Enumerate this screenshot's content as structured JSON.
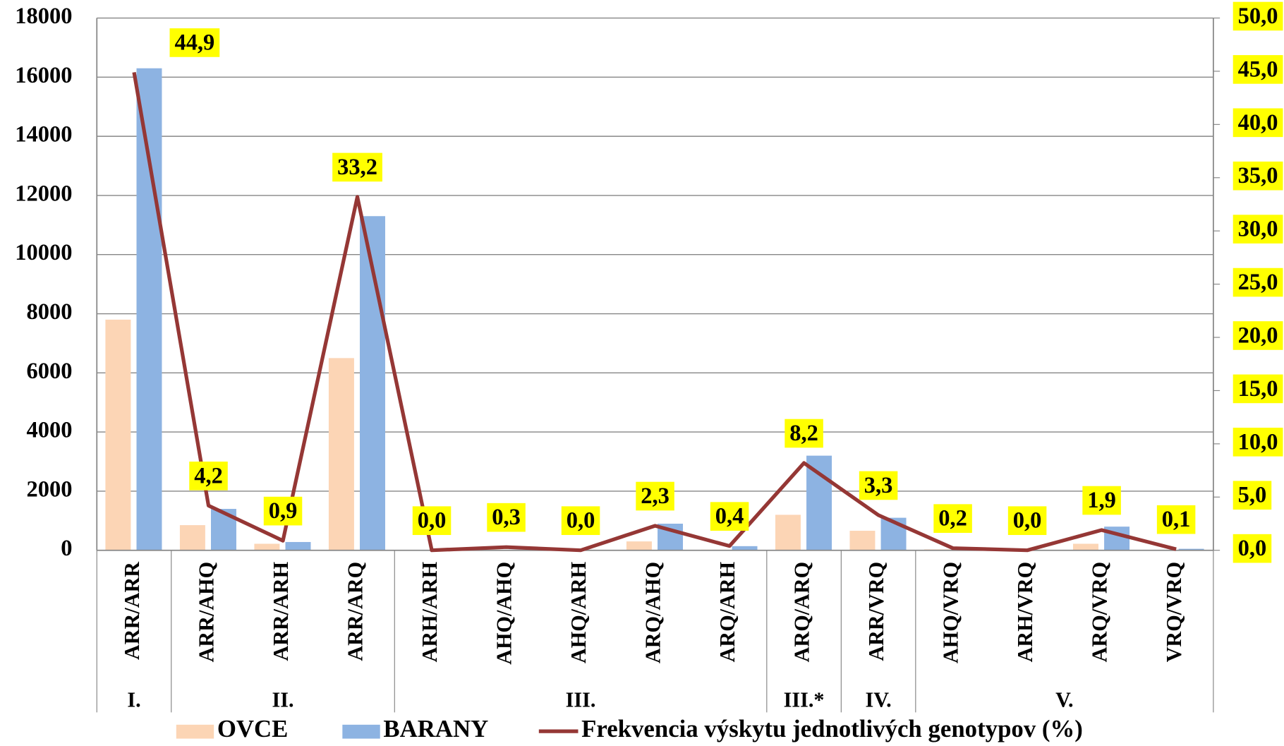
{
  "chart_data": {
    "type": "bar",
    "categories": [
      "ARR/ARR",
      "ARR/AHQ",
      "ARR/ARH",
      "ARR/ARQ",
      "ARH/ARH",
      "AHQ/AHQ",
      "AHQ/ARH",
      "ARQ/AHQ",
      "ARQ/ARH",
      "ARQ/ARQ",
      "ARR/VRQ",
      "AHQ/VRQ",
      "ARH/VRQ",
      "ARQ/VRQ",
      "VRQ/VRQ"
    ],
    "groups": [
      "I.",
      "II.",
      "III.",
      "III.*",
      "IV.",
      "V."
    ],
    "group_sizes": [
      1,
      3,
      5,
      1,
      1,
      4
    ],
    "series": [
      {
        "name": "OVCE",
        "color": "#fcd5b5",
        "values": [
          7800,
          850,
          220,
          6500,
          0,
          20,
          0,
          300,
          20,
          1200,
          660,
          30,
          0,
          220,
          0
        ]
      },
      {
        "name": "BARANY",
        "color": "#8db3e2",
        "values": [
          16300,
          1400,
          280,
          11300,
          0,
          20,
          0,
          900,
          140,
          3200,
          1100,
          0,
          0,
          800,
          50
        ]
      },
      {
        "name": "Frekvencia výskytu jednotlivých genotypov (%)",
        "color": "#953735",
        "type": "line",
        "axis": "y2",
        "values": [
          44.9,
          4.2,
          0.9,
          33.2,
          0.0,
          0.3,
          0.0,
          2.3,
          0.4,
          8.2,
          3.3,
          0.2,
          0.0,
          1.9,
          0.1
        ],
        "value_labels": [
          "44,9",
          "4,2",
          "0,9",
          "33,2",
          "0,0",
          "0,3",
          "0,0",
          "2,3",
          "0,4",
          "8,2",
          "3,3",
          "0,2",
          "0,0",
          "1,9",
          "0,1"
        ]
      }
    ],
    "ylim": [
      0,
      18000
    ],
    "yticks": [
      0,
      2000,
      4000,
      6000,
      8000,
      10000,
      12000,
      14000,
      16000,
      18000
    ],
    "y2lim": [
      0,
      50
    ],
    "y2ticks": [
      {
        "value": 0,
        "label": "0,0"
      },
      {
        "value": 5,
        "label": "5,0"
      },
      {
        "value": 10,
        "label": "10,0"
      },
      {
        "value": 15,
        "label": "15,0"
      },
      {
        "value": 20,
        "label": "20,0"
      },
      {
        "value": 25,
        "label": "25,0"
      },
      {
        "value": 30,
        "label": "30,0"
      },
      {
        "value": 35,
        "label": "35,0"
      },
      {
        "value": 40,
        "label": "40,0"
      },
      {
        "value": 45,
        "label": "45,0"
      },
      {
        "value": 50,
        "label": "50,0"
      }
    ],
    "grid": true,
    "legend": "bottom"
  }
}
